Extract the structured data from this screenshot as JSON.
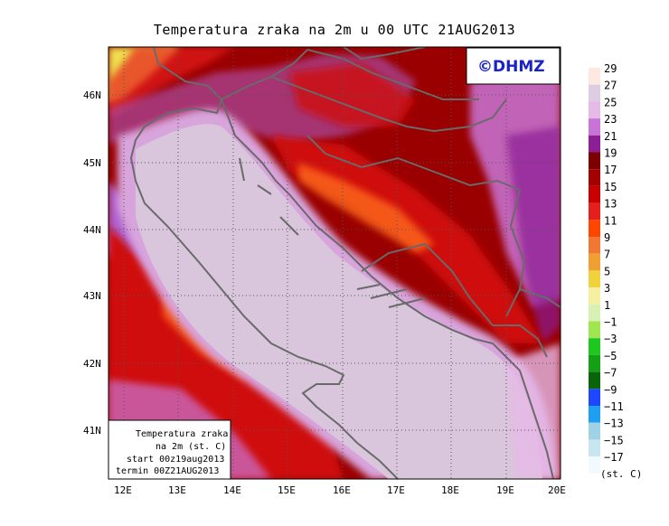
{
  "title": "Temperatura zraka na 2m u 00 UTC 21AUG2013",
  "brand": "©DHMZ",
  "info_box": {
    "line1": "Temperatura zraka",
    "line2": "na 2m (st. C)",
    "line3": "start 00z19aug2013",
    "line4": "termin 00Z21AUG2013"
  },
  "axes": {
    "lon_ticks": [
      "12E",
      "13E",
      "14E",
      "15E",
      "16E",
      "17E",
      "18E",
      "19E",
      "20E"
    ],
    "lat_ticks": [
      "46N",
      "45N",
      "44N",
      "43N",
      "42N",
      "41N"
    ]
  },
  "colorbar": {
    "unit": "(st. C)",
    "levels": [
      "29",
      "27",
      "25",
      "23",
      "21",
      "19",
      "17",
      "15",
      "13",
      "11",
      "9",
      "7",
      "5",
      "3",
      "1",
      "−1",
      "−3",
      "−5",
      "−7",
      "−9",
      "−11",
      "−13",
      "−15",
      "−17"
    ],
    "colors": [
      "#fde9df",
      "#dccde2",
      "#e6b9e6",
      "#c874d6",
      "#8c1f96",
      "#7d0000",
      "#a30000",
      "#c80000",
      "#e61e1e",
      "#ff4600",
      "#f07832",
      "#f0a032",
      "#f0d23c",
      "#f5f0a0",
      "#d7f0b4",
      "#a0e650",
      "#1ec81e",
      "#14a014",
      "#0a640a",
      "#1e46ff",
      "#1ea0f0",
      "#a0d2e6",
      "#c8e6f0",
      "#f0faff"
    ]
  },
  "map_colors": {
    "sea_light": "#d9c6dc",
    "sea_pink": "#d8a4dc",
    "purple": "#b060d0",
    "magenta": "#8a1a94",
    "dark_red": "#9a0000",
    "red": "#cf0a0a",
    "orange_red": "#f03a14",
    "orange": "#ff6a1e",
    "yellow": "#f0e050",
    "border": "#6a6a6a"
  }
}
